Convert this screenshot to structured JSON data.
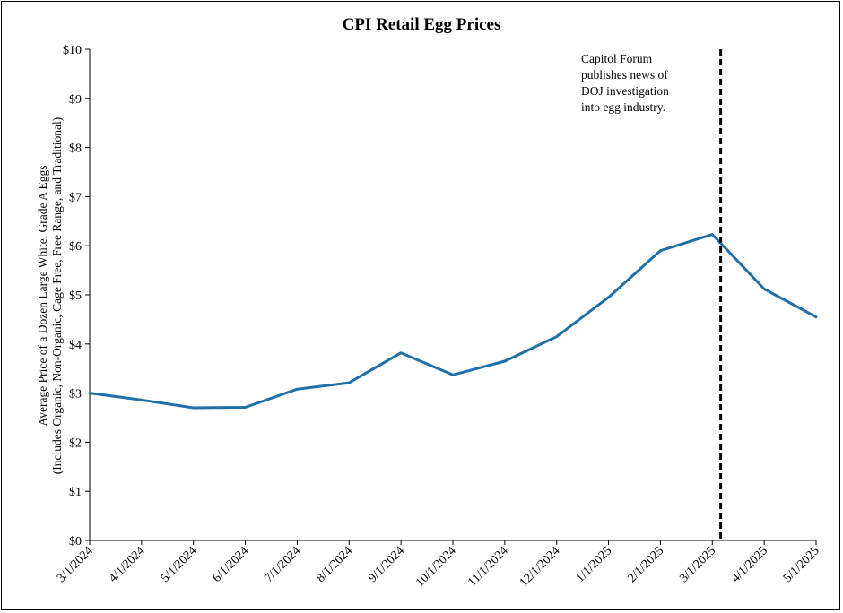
{
  "chart_data": {
    "type": "line",
    "title": "CPI Retail Egg Prices",
    "ylabel_lines": [
      "Average Price of a Dozen Large White, Grade A Eggs",
      "(Includes Organic, Non-Organic, Cage Free, Free Range, and Traditional)"
    ],
    "xlabel": "",
    "ylim": [
      0,
      10
    ],
    "y_ticks": [
      "$0",
      "$1",
      "$2",
      "$3",
      "$4",
      "$5",
      "$6",
      "$7",
      "$8",
      "$9",
      "$10"
    ],
    "categories": [
      "3/1/2024",
      "4/1/2024",
      "5/1/2024",
      "6/1/2024",
      "7/1/2024",
      "8/1/2024",
      "9/1/2024",
      "10/1/2024",
      "11/1/2024",
      "12/1/2024",
      "1/1/2025",
      "2/1/2025",
      "3/1/2025",
      "4/1/2025",
      "5/1/2025"
    ],
    "series": [
      {
        "values": [
          3.0,
          2.86,
          2.7,
          2.71,
          3.08,
          3.21,
          3.82,
          3.37,
          3.65,
          4.15,
          4.95,
          5.9,
          6.23,
          5.12,
          4.55
        ]
      }
    ],
    "line_color": "#1f6fa8",
    "grid": false,
    "annotation": {
      "lines": [
        "Capitol Forum",
        "publishes  news of",
        "DOJ investigation",
        "into egg industry."
      ],
      "marker": "vertical dashed line shortly after 3/1/2025",
      "marker_date": "3/6/2025"
    }
  }
}
